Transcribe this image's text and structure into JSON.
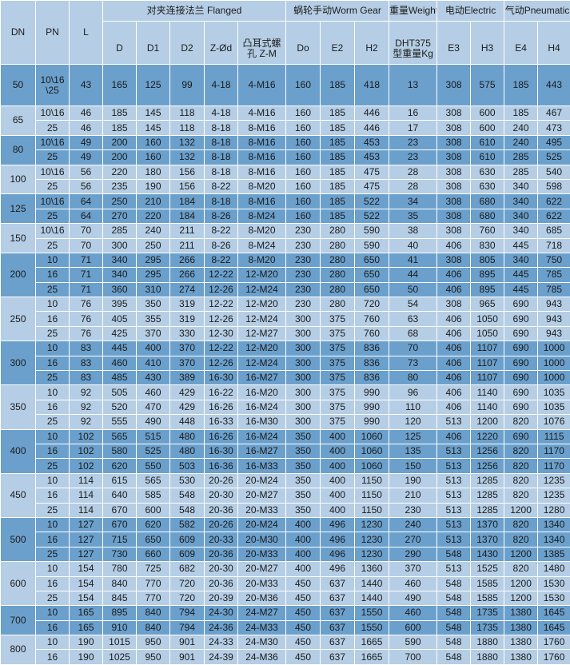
{
  "colors": {
    "light_row": "#b5cee5",
    "dark_row": "#6ba0cc",
    "border": "#ffffff"
  },
  "header": {
    "dn": "DN",
    "pn": "PN",
    "l": "L",
    "groups": {
      "flanged": "对夹连接法兰 Flanged",
      "worm_gear": "蜗轮手动Worm Gear",
      "weight": "重量Weight",
      "electric": "电动Electric",
      "pneumatic": "气动Pneumatic"
    },
    "columns": [
      "D",
      "D1",
      "D2",
      "Z-Ød",
      "凸耳式螺孔 Z-M",
      "Do",
      "E2",
      "H2",
      "DHT375 型重量Kg",
      "E3",
      "H3",
      "E4",
      "H4"
    ]
  },
  "groups": [
    {
      "dn": "50",
      "rows": [
        [
          "10\\16 \\25",
          "43",
          "165",
          "125",
          "99",
          "4-18",
          "4-M16",
          "160",
          "185",
          "418",
          "13",
          "308",
          "575",
          "185",
          "443"
        ]
      ]
    },
    {
      "dn": "65",
      "rows": [
        [
          "10\\16",
          "46",
          "185",
          "145",
          "118",
          "4-18",
          "4-M16",
          "160",
          "185",
          "446",
          "16",
          "308",
          "600",
          "185",
          "467"
        ],
        [
          "25",
          "46",
          "185",
          "145",
          "118",
          "8-18",
          "8-M16",
          "160",
          "185",
          "446",
          "17",
          "308",
          "600",
          "240",
          "473"
        ]
      ]
    },
    {
      "dn": "80",
      "rows": [
        [
          "10\\16",
          "49",
          "200",
          "160",
          "132",
          "8-18",
          "8-M16",
          "160",
          "185",
          "453",
          "23",
          "308",
          "610",
          "240",
          "495"
        ],
        [
          "25",
          "49",
          "200",
          "160",
          "132",
          "8-18",
          "8-M16",
          "160",
          "185",
          "453",
          "23",
          "308",
          "610",
          "285",
          "525"
        ]
      ]
    },
    {
      "dn": "100",
      "rows": [
        [
          "10\\16",
          "56",
          "220",
          "180",
          "156",
          "8-18",
          "8-M16",
          "160",
          "185",
          "475",
          "28",
          "308",
          "630",
          "285",
          "540"
        ],
        [
          "25",
          "56",
          "235",
          "190",
          "156",
          "8-22",
          "8-M20",
          "160",
          "185",
          "475",
          "28",
          "308",
          "630",
          "340",
          "598"
        ]
      ]
    },
    {
      "dn": "125",
      "rows": [
        [
          "10\\16",
          "64",
          "250",
          "210",
          "184",
          "8-18",
          "8-M16",
          "160",
          "185",
          "522",
          "34",
          "308",
          "680",
          "340",
          "622"
        ],
        [
          "25",
          "64",
          "270",
          "220",
          "184",
          "8-26",
          "8-M24",
          "160",
          "185",
          "522",
          "35",
          "308",
          "680",
          "340",
          "622"
        ]
      ]
    },
    {
      "dn": "150",
      "rows": [
        [
          "10\\16",
          "70",
          "285",
          "240",
          "211",
          "8-22",
          "8-M20",
          "230",
          "280",
          "590",
          "38",
          "308",
          "760",
          "340",
          "685"
        ],
        [
          "25",
          "70",
          "300",
          "250",
          "211",
          "8-26",
          "8-M24",
          "230",
          "280",
          "590",
          "40",
          "406",
          "830",
          "445",
          "718"
        ]
      ]
    },
    {
      "dn": "200",
      "rows": [
        [
          "10",
          "71",
          "340",
          "295",
          "266",
          "8-22",
          "8-M20",
          "230",
          "280",
          "650",
          "41",
          "308",
          "805",
          "340",
          "750"
        ],
        [
          "16",
          "71",
          "340",
          "295",
          "266",
          "12-22",
          "12-M20",
          "230",
          "280",
          "650",
          "44",
          "406",
          "895",
          "445",
          "785"
        ],
        [
          "25",
          "71",
          "360",
          "310",
          "274",
          "12-26",
          "12-M24",
          "230",
          "280",
          "650",
          "50",
          "406",
          "895",
          "445",
          "785"
        ]
      ]
    },
    {
      "dn": "250",
      "rows": [
        [
          "10",
          "76",
          "395",
          "350",
          "319",
          "12-22",
          "12-M20",
          "230",
          "280",
          "720",
          "54",
          "308",
          "965",
          "690",
          "943"
        ],
        [
          "16",
          "76",
          "405",
          "355",
          "319",
          "12-26",
          "12-M24",
          "300",
          "375",
          "760",
          "63",
          "406",
          "1050",
          "690",
          "943"
        ],
        [
          "25",
          "76",
          "425",
          "370",
          "330",
          "12-30",
          "12-M27",
          "300",
          "375",
          "760",
          "68",
          "406",
          "1050",
          "690",
          "943"
        ]
      ]
    },
    {
      "dn": "300",
      "rows": [
        [
          "10",
          "83",
          "445",
          "400",
          "370",
          "12-22",
          "12-M20",
          "300",
          "375",
          "836",
          "70",
          "406",
          "1107",
          "690",
          "1000"
        ],
        [
          "16",
          "83",
          "460",
          "410",
          "370",
          "12-26",
          "12-M24",
          "300",
          "375",
          "836",
          "73",
          "406",
          "1107",
          "690",
          "1000"
        ],
        [
          "25",
          "83",
          "485",
          "430",
          "389",
          "16-30",
          "16-M27",
          "300",
          "375",
          "836",
          "80",
          "406",
          "1107",
          "690",
          "1000"
        ]
      ]
    },
    {
      "dn": "350",
      "rows": [
        [
          "10",
          "92",
          "505",
          "460",
          "429",
          "16-22",
          "16-M20",
          "300",
          "375",
          "990",
          "96",
          "406",
          "1140",
          "690",
          "1035"
        ],
        [
          "16",
          "92",
          "520",
          "470",
          "429",
          "16-26",
          "16-M24",
          "300",
          "375",
          "990",
          "110",
          "406",
          "1140",
          "690",
          "1035"
        ],
        [
          "25",
          "92",
          "555",
          "490",
          "448",
          "16-33",
          "16-M30",
          "300",
          "375",
          "990",
          "120",
          "513",
          "1200",
          "820",
          "1076"
        ]
      ]
    },
    {
      "dn": "400",
      "rows": [
        [
          "10",
          "102",
          "565",
          "515",
          "480",
          "16-26",
          "16-M24",
          "350",
          "400",
          "1060",
          "125",
          "406",
          "1220",
          "690",
          "1115"
        ],
        [
          "16",
          "102",
          "580",
          "525",
          "480",
          "16-30",
          "16-M27",
          "350",
          "400",
          "1060",
          "135",
          "513",
          "1256",
          "820",
          "1170"
        ],
        [
          "25",
          "102",
          "620",
          "550",
          "503",
          "16-36",
          "16-M33",
          "350",
          "400",
          "1060",
          "150",
          "513",
          "1256",
          "820",
          "1170"
        ]
      ]
    },
    {
      "dn": "450",
      "rows": [
        [
          "10",
          "114",
          "615",
          "565",
          "530",
          "20-26",
          "20-M24",
          "350",
          "400",
          "1150",
          "190",
          "513",
          "1285",
          "820",
          "1235"
        ],
        [
          "16",
          "114",
          "640",
          "585",
          "548",
          "20-30",
          "20-M27",
          "350",
          "400",
          "1150",
          "210",
          "513",
          "1285",
          "820",
          "1235"
        ],
        [
          "25",
          "114",
          "670",
          "600",
          "548",
          "20-36",
          "20-M33",
          "350",
          "400",
          "1150",
          "230",
          "513",
          "1285",
          "1200",
          "1280"
        ]
      ]
    },
    {
      "dn": "500",
      "rows": [
        [
          "10",
          "127",
          "670",
          "620",
          "582",
          "20-26",
          "20-M24",
          "400",
          "496",
          "1230",
          "240",
          "513",
          "1370",
          "820",
          "1340"
        ],
        [
          "16",
          "127",
          "715",
          "650",
          "609",
          "20-33",
          "20-M30",
          "400",
          "496",
          "1230",
          "270",
          "513",
          "1370",
          "820",
          "1340"
        ],
        [
          "25",
          "127",
          "730",
          "660",
          "609",
          "20-36",
          "20-M33",
          "400",
          "496",
          "1230",
          "290",
          "548",
          "1430",
          "1200",
          "1385"
        ]
      ]
    },
    {
      "dn": "600",
      "rows": [
        [
          "10",
          "154",
          "780",
          "725",
          "682",
          "20-30",
          "20-M27",
          "400",
          "496",
          "1360",
          "370",
          "513",
          "1525",
          "820",
          "1480"
        ],
        [
          "16",
          "154",
          "840",
          "770",
          "720",
          "20-36",
          "20-M33",
          "450",
          "637",
          "1440",
          "460",
          "548",
          "1585",
          "1200",
          "1530"
        ],
        [
          "25",
          "154",
          "845",
          "770",
          "720",
          "20-39",
          "20-M36",
          "450",
          "637",
          "1440",
          "490",
          "548",
          "1585",
          "1200",
          "1530"
        ]
      ]
    },
    {
      "dn": "700",
      "rows": [
        [
          "10",
          "165",
          "895",
          "840",
          "794",
          "24-30",
          "24-M27",
          "450",
          "637",
          "1550",
          "460",
          "548",
          "1735",
          "1380",
          "1645"
        ],
        [
          "16",
          "165",
          "910",
          "840",
          "794",
          "24-36",
          "24-M33",
          "450",
          "637",
          "1550",
          "600",
          "548",
          "1735",
          "1380",
          "1645"
        ]
      ]
    },
    {
      "dn": "800",
      "rows": [
        [
          "10",
          "190",
          "1015",
          "950",
          "901",
          "24-33",
          "24-M30",
          "450",
          "637",
          "1665",
          "590",
          "548",
          "1880",
          "1380",
          "1760"
        ],
        [
          "16",
          "190",
          "1025",
          "950",
          "901",
          "24-39",
          "24-M36",
          "450",
          "637",
          "1665",
          "700",
          "548",
          "1880",
          "1380",
          "1760"
        ]
      ]
    }
  ]
}
